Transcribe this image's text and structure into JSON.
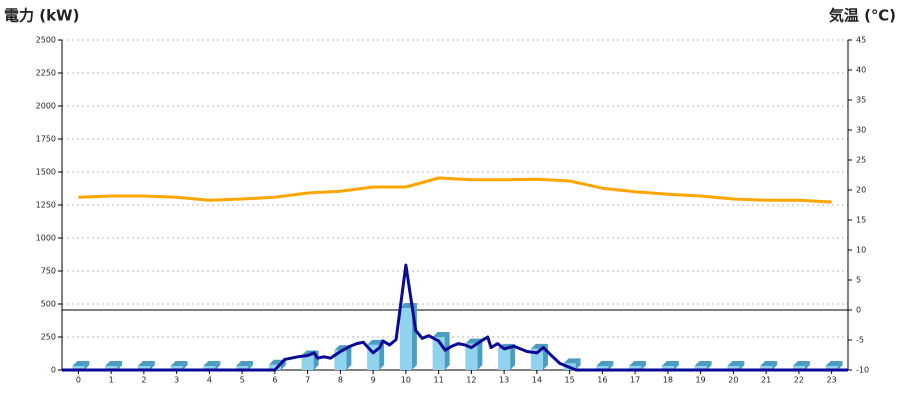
{
  "chart_data": {
    "type": "combo",
    "y_title": "電力 (kW)",
    "y2_title": "気温 (℃)",
    "y_title_color": "#1f5fb0",
    "y2_title_color": "#f08a24",
    "xlim": [
      -0.5,
      23.5
    ],
    "xticks": [
      0,
      1,
      2,
      3,
      4,
      5,
      6,
      7,
      8,
      9,
      10,
      11,
      12,
      13,
      14,
      15,
      16,
      17,
      18,
      19,
      20,
      21,
      22,
      23
    ],
    "ylim": [
      0,
      2500
    ],
    "yticks": [
      0,
      250,
      500,
      750,
      1000,
      1250,
      1500,
      1750,
      2000,
      2250,
      2500
    ],
    "y2lim": [
      -10,
      45
    ],
    "y2ticks": [
      -10,
      -5,
      0,
      5,
      10,
      15,
      20,
      25,
      30,
      35,
      40,
      45
    ],
    "grid": true,
    "y2_zero_line": true,
    "series": [
      {
        "type": "bar",
        "color": "#8fd3ef",
        "side_color": "#4a9cc0",
        "x": [
          0,
          1,
          2,
          3,
          4,
          5,
          6,
          7,
          8,
          9,
          10,
          11,
          12,
          13,
          14,
          15,
          16,
          17,
          18,
          19,
          20,
          21,
          22,
          23
        ],
        "values": [
          30,
          30,
          30,
          30,
          30,
          30,
          40,
          110,
          150,
          190,
          470,
          250,
          200,
          160,
          160,
          50,
          30,
          30,
          30,
          30,
          30,
          30,
          30,
          30
        ]
      },
      {
        "type": "line",
        "color": "#0a0a96",
        "x": [
          -0.5,
          0,
          1,
          2,
          3,
          4,
          5,
          6,
          6.3,
          6.7,
          7,
          7.2,
          7.3,
          7.5,
          7.7,
          8,
          8.3,
          8.5,
          8.7,
          9,
          9.2,
          9.3,
          9.5,
          9.7,
          10,
          10.3,
          10.5,
          10.7,
          11,
          11.2,
          11.4,
          11.6,
          11.8,
          12,
          12.3,
          12.5,
          12.6,
          12.8,
          13,
          13.3,
          13.7,
          14,
          14.2,
          14.4,
          14.7,
          15,
          15.2,
          16,
          17,
          18,
          19,
          20,
          21,
          22,
          23,
          23.5
        ],
        "values": [
          0,
          0,
          0,
          0,
          0,
          0,
          0,
          0,
          80,
          100,
          110,
          130,
          90,
          100,
          90,
          140,
          180,
          200,
          210,
          130,
          170,
          220,
          190,
          230,
          795,
          300,
          240,
          260,
          220,
          150,
          180,
          200,
          190,
          170,
          220,
          250,
          170,
          200,
          160,
          180,
          140,
          130,
          170,
          120,
          50,
          20,
          0,
          0,
          0,
          0,
          0,
          0,
          0,
          0,
          0,
          0
        ]
      },
      {
        "type": "line",
        "axis": "y2",
        "color": "#ffa500",
        "x": [
          0,
          1,
          2,
          3,
          4,
          5,
          6,
          7,
          8,
          9,
          10,
          11,
          12,
          13,
          14,
          15,
          16,
          17,
          18,
          19,
          20,
          21,
          22,
          23
        ],
        "values": [
          18.8,
          19,
          19,
          18.8,
          18.3,
          18.5,
          18.8,
          19.5,
          19.8,
          20.5,
          20.5,
          22,
          21.7,
          21.7,
          21.8,
          21.5,
          20.3,
          19.7,
          19.3,
          19,
          18.5,
          18.3,
          18.3,
          18
        ]
      }
    ]
  }
}
